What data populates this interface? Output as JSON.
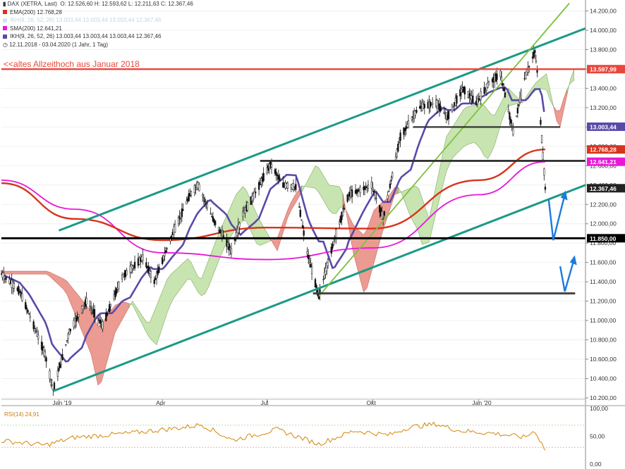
{
  "legend": {
    "instrument": "DAX (XETRA, Last)",
    "ohlc": "O: 12.526,60  H: 12.593,62  L: 12.211,63  C: 12.367,46",
    "ema": "EMA(200)  12.768,28",
    "ikh_faded": "IKH(9, 26, 52, 26)  13.003,44  13.003,44  13.003,44  12.367,46",
    "sma": "SMA(200)  12.641,21",
    "ikh": "IKH(9, 26, 52, 26)  13.003,44  13.003,44  13.003,44  12.367,46",
    "period": "12.11.2018 - 03.04.2020  (1 Jahr, 1 Tag)"
  },
  "annotation": "<<altes Allzeithoch aus Januar 2018",
  "colors": {
    "channel": "#1a9a86",
    "trend_green": "#7cc242",
    "resistance_red": "#e8473c",
    "ema": "#d8331c",
    "sma": "#e818d8",
    "kijun": "#5a4aa8",
    "cloud_bull": "#bfe0a4",
    "cloud_bear": "#e88a7e",
    "arrow_blue": "#1a7adf",
    "rsi": "#d8901c",
    "candles": "#111111"
  },
  "chart_data": [
    {
      "type": "candlestick",
      "title": "DAX (XETRA, Last)",
      "x_tick_labels": [
        "Jan '19",
        "Apr",
        "Jul",
        "Okt",
        "Jan '20"
      ],
      "y_tick_labels": [
        "14.200,00",
        "14.000,00",
        "13.800,00",
        "13.600,00",
        "13.400,00",
        "13.200,00",
        "13.000,00",
        "12.800,00",
        "12.600,00",
        "12.400,00",
        "12.200,00",
        "12.000,00",
        "11.800,00",
        "11.600,00",
        "11.400,00",
        "11.200,00",
        "11.000,00",
        "10.800,00",
        "10.600,00",
        "10.400,00",
        "10.200,00"
      ],
      "y_ticks": [
        14200,
        14000,
        13800,
        13600,
        13400,
        13200,
        13000,
        12800,
        12600,
        12400,
        12200,
        12000,
        11800,
        11600,
        11400,
        11200,
        11000,
        10800,
        10600,
        10400,
        10200
      ],
      "ylim": [
        10200,
        14250
      ],
      "price_path": [
        [
          "2018-11-12",
          11480
        ],
        [
          "2018-11-28",
          11300
        ],
        [
          "2018-12-10",
          10950
        ],
        [
          "2018-12-20",
          10650
        ],
        [
          "2018-12-27",
          10280
        ],
        [
          "2019-01-10",
          10880
        ],
        [
          "2019-01-25",
          11200
        ],
        [
          "2019-02-08",
          10950
        ],
        [
          "2019-02-25",
          11450
        ],
        [
          "2019-03-15",
          11650
        ],
        [
          "2019-03-25",
          11400
        ],
        [
          "2019-04-10",
          11900
        ],
        [
          "2019-04-25",
          12300
        ],
        [
          "2019-05-02",
          12400
        ],
        [
          "2019-05-15",
          12050
        ],
        [
          "2019-05-31",
          11720
        ],
        [
          "2019-06-10",
          12100
        ],
        [
          "2019-06-20",
          12300
        ],
        [
          "2019-07-04",
          12620
        ],
        [
          "2019-07-15",
          12400
        ],
        [
          "2019-07-26",
          12380
        ],
        [
          "2019-08-05",
          11700
        ],
        [
          "2019-08-15",
          11250
        ],
        [
          "2019-08-30",
          11900
        ],
        [
          "2019-09-10",
          12300
        ],
        [
          "2019-09-30",
          12400
        ],
        [
          "2019-10-10",
          12050
        ],
        [
          "2019-10-25",
          12900
        ],
        [
          "2019-11-10",
          13200
        ],
        [
          "2019-11-25",
          13250
        ],
        [
          "2019-12-05",
          13100
        ],
        [
          "2019-12-18",
          13400
        ],
        [
          "2019-12-30",
          13250
        ],
        [
          "2020-01-10",
          13450
        ],
        [
          "2020-01-20",
          13550
        ],
        [
          "2020-01-31",
          12950
        ],
        [
          "2020-02-10",
          13500
        ],
        [
          "2020-02-19",
          13780
        ],
        [
          "2020-02-21",
          13580
        ],
        [
          "2020-02-24",
          13050
        ],
        [
          "2020-02-26",
          12700
        ],
        [
          "2020-02-28",
          12367
        ]
      ],
      "close": 12367.46,
      "price_tags": [
        {
          "label": "13.597,99",
          "value": 13598,
          "color": "#e8473c"
        },
        {
          "label": "13.003,44",
          "value": 13003,
          "color": "#5a4aa8"
        },
        {
          "label": "12.768,28",
          "value": 12768,
          "color": "#d8331c"
        },
        {
          "label": "12.641,21",
          "value": 12641,
          "color": "#e818d8"
        },
        {
          "label": "12.367,46",
          "value": 12367,
          "color": "#222222"
        },
        {
          "label": "11.850,00",
          "value": 11850,
          "color": "#000000"
        }
      ],
      "ema200": [
        [
          "2018-11-12",
          12420
        ],
        [
          "2019-01-15",
          12050
        ],
        [
          "2019-04-01",
          11830
        ],
        [
          "2019-07-01",
          11960
        ],
        [
          "2019-10-01",
          11950
        ],
        [
          "2020-01-01",
          12450
        ],
        [
          "2020-02-28",
          12768
        ]
      ],
      "sma200": [
        [
          "2018-11-12",
          12450
        ],
        [
          "2019-01-15",
          12150
        ],
        [
          "2019-04-01",
          11700
        ],
        [
          "2019-07-01",
          11630
        ],
        [
          "2019-10-01",
          11750
        ],
        [
          "2020-01-01",
          12300
        ],
        [
          "2020-02-28",
          12641
        ]
      ],
      "horizontal_levels": [
        13598,
        13000,
        12650,
        11850,
        11280
      ]
    },
    {
      "type": "line",
      "title": "RSI(14)",
      "series": [
        {
          "name": "RSI(14) 24,91",
          "last": 24.91
        }
      ],
      "y_tick_labels": [
        "100,00",
        "50,00",
        "0,00"
      ],
      "ylim": [
        0,
        100
      ],
      "bands": [
        30,
        70
      ],
      "rsi_path": [
        [
          "2018-11-12",
          42
        ],
        [
          "2018-12-20",
          34
        ],
        [
          "2019-01-15",
          48
        ],
        [
          "2019-03-01",
          55
        ],
        [
          "2019-04-20",
          66
        ],
        [
          "2019-05-05",
          71
        ],
        [
          "2019-06-01",
          43
        ],
        [
          "2019-07-10",
          62
        ],
        [
          "2019-08-15",
          36
        ],
        [
          "2019-09-15",
          60
        ],
        [
          "2019-10-15",
          52
        ],
        [
          "2019-11-01",
          66
        ],
        [
          "2019-11-25",
          72
        ],
        [
          "2019-12-15",
          60
        ],
        [
          "2020-01-15",
          55
        ],
        [
          "2020-02-10",
          48
        ],
        [
          "2020-02-19",
          60
        ],
        [
          "2020-02-28",
          24.91
        ]
      ]
    }
  ]
}
